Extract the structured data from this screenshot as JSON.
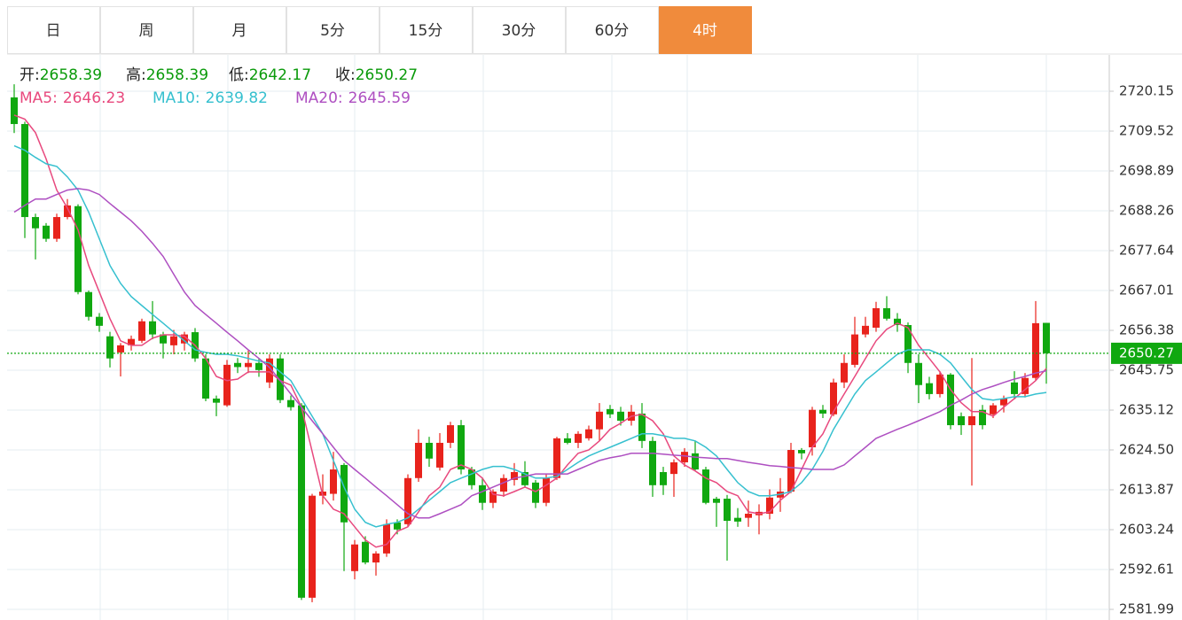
{
  "chart_data": {
    "type": "candlestick",
    "tabs": [
      "日",
      "周",
      "月",
      "5分",
      "15分",
      "30分",
      "60分",
      "4时"
    ],
    "active_tab_index": 7,
    "info": [
      {
        "label": "开:",
        "value": 2658.39
      },
      {
        "label": "高:",
        "value": 2658.39
      },
      {
        "label": "低:",
        "value": 2642.17
      },
      {
        "label": "收:",
        "value": 2650.27
      }
    ],
    "up_color": "#e8231c",
    "down_color": "#10a810",
    "last_price_color": "#10a810",
    "open": [
      2718.5,
      2711.4,
      2686.6,
      2684.3,
      2680.8,
      2686.6,
      2689.5,
      2666.6,
      2660.0,
      2654.8,
      2650.5,
      2652.4,
      2653.6,
      2658.8,
      2655.3,
      2652.4,
      2652.9,
      2655.9,
      2648.9,
      2638.2,
      2636.4,
      2647.7,
      2646.6,
      2647.7,
      2642.5,
      2648.9,
      2637.8,
      2636.4,
      2585.1,
      2612.3,
      2612.8,
      2620.5,
      2592.2,
      2600.0,
      2594.5,
      2596.9,
      2605.2,
      2604.7,
      2617.0,
      2626.4,
      2619.8,
      2626.4,
      2631.1,
      2619.3,
      2615.1,
      2610.4,
      2613.4,
      2616.5,
      2618.6,
      2615.8,
      2610.4,
      2617.0,
      2627.6,
      2626.4,
      2627.6,
      2630.0,
      2635.4,
      2634.7,
      2632.3,
      2634.2,
      2626.9,
      2618.6,
      2618.1,
      2621.2,
      2623.6,
      2619.3,
      2611.5,
      2611.5,
      2606.4,
      2606.4,
      2607.1,
      2607.5,
      2611.8,
      2613.4,
      2624.5,
      2625.2,
      2635.2,
      2634.0,
      2642.5,
      2647.2,
      2655.3,
      2657.1,
      2662.3,
      2659.5,
      2657.8,
      2647.7,
      2642.3,
      2639.4,
      2644.6,
      2633.5,
      2631.1,
      2635.2,
      2634.0,
      2636.4,
      2642.5,
      2639.4,
      2643.7,
      2658.39
    ],
    "high": [
      2722,
      2712,
      2687.5,
      2685,
      2687.5,
      2691.4,
      2690,
      2667,
      2661,
      2656,
      2653,
      2655,
      2659.5,
      2664.2,
      2656,
      2656.5,
      2656,
      2657,
      2650,
      2639,
      2648.5,
      2649,
      2651,
      2649,
      2650,
      2650,
      2639,
      2637,
      2612.8,
      2618,
      2624,
      2621,
      2600.5,
      2601.5,
      2597.5,
      2606,
      2606,
      2618,
      2630,
      2628,
      2629,
      2632,
      2632.5,
      2620,
      2617,
      2614,
      2618,
      2621,
      2621.5,
      2616.5,
      2618,
      2628,
      2629,
      2629.5,
      2631,
      2637,
      2636.5,
      2636,
      2636.5,
      2637,
      2628,
      2620,
      2622,
      2625,
      2627,
      2620,
      2612,
      2612.5,
      2609,
      2611,
      2610,
      2614,
      2617,
      2626.4,
      2625,
      2636,
      2636.5,
      2643.5,
      2650,
      2660,
      2660,
      2664,
      2665.5,
      2661,
      2658.5,
      2650,
      2644,
      2645.5,
      2645,
      2634.5,
      2649,
      2636.5,
      2637,
      2639,
      2645.5,
      2645,
      2664.2,
      2658.39
    ],
    "low": [
      2709,
      2681,
      2675.3,
      2680,
      2680,
      2686,
      2666,
      2659,
      2656,
      2646.5,
      2644.1,
      2651,
      2653,
      2654,
      2648.9,
      2650,
      2651,
      2648,
      2637.5,
      2633.5,
      2636,
      2645,
      2645,
      2644,
      2641,
      2637,
      2635,
      2584.5,
      2583.9,
      2610,
      2611,
      2592.2,
      2590,
      2594,
      2591,
      2596,
      2602,
      2604,
      2616,
      2620,
      2619,
      2625,
      2618,
      2614,
      2608.5,
      2609,
      2612,
      2615,
      2614.5,
      2609,
      2609.5,
      2616.5,
      2626,
      2625,
      2627,
      2627,
      2633,
      2631,
      2631,
      2625,
      2612,
      2612.5,
      2612,
      2620,
      2619,
      2610,
      2604,
      2595,
      2604,
      2604,
      2602,
      2606,
      2608,
      2613,
      2622,
      2623,
      2633,
      2633.5,
      2641,
      2646.5,
      2654.5,
      2656,
      2659,
      2656,
      2645,
      2637,
      2638,
      2638.5,
      2630,
      2628.5,
      2615,
      2630,
      2633,
      2634.5,
      2638,
      2638.5,
      2643,
      2642.17
    ],
    "close": [
      2711.4,
      2686.6,
      2683.6,
      2680.8,
      2686.6,
      2689.7,
      2666.6,
      2660.0,
      2657.6,
      2648.9,
      2652.4,
      2654.1,
      2658.8,
      2655.3,
      2652.9,
      2654.8,
      2655.3,
      2648.9,
      2638.2,
      2637.1,
      2647.2,
      2646.6,
      2647.7,
      2645.8,
      2648.9,
      2637.8,
      2635.9,
      2585.1,
      2612.3,
      2613.4,
      2619.3,
      2605.2,
      2599.3,
      2594.5,
      2596.9,
      2604.7,
      2603.3,
      2617.0,
      2626.4,
      2622.2,
      2626.4,
      2631.1,
      2619.3,
      2615.1,
      2610.4,
      2613.4,
      2617.0,
      2618.6,
      2615.1,
      2610.4,
      2617.0,
      2627.6,
      2626.4,
      2628.8,
      2630.0,
      2634.7,
      2634.0,
      2632.3,
      2634.7,
      2626.9,
      2615.1,
      2615.1,
      2621.2,
      2624.0,
      2619.3,
      2610.4,
      2610.4,
      2605.6,
      2605.4,
      2607.5,
      2608.0,
      2611.8,
      2613.4,
      2624.5,
      2623.6,
      2635.2,
      2634.2,
      2642.5,
      2647.7,
      2655.3,
      2657.6,
      2662.3,
      2659.5,
      2657.8,
      2647.7,
      2641.8,
      2639.4,
      2644.6,
      2631.1,
      2631.1,
      2633.5,
      2631.1,
      2636.4,
      2638.2,
      2639.4,
      2643.7,
      2658.3,
      2650.27
    ],
    "series": [
      {
        "name": "MA5:",
        "color": "#e8497e",
        "current": 2646.23,
        "values": [
          2713.8,
          2712.7,
          2709.1,
          2702.1,
          2693.8,
          2689.0,
          2683.2,
          2673.7,
          2666.6,
          2659.5,
          2653.6,
          2652.4,
          2652.4,
          2654.3,
          2655.2,
          2655.2,
          2654.8,
          2652.4,
          2648.9,
          2644.1,
          2643.0,
          2643.4,
          2645.3,
          2645.3,
          2645.3,
          2643.0,
          2641.8,
          2635.9,
          2624.1,
          2612.3,
          2608.7,
          2607.5,
          2604.0,
          2600.5,
          2598.6,
          2599.3,
          2602.8,
          2604.0,
          2608.0,
          2612.3,
          2614.6,
          2619.3,
          2620.5,
          2619.3,
          2617.0,
          2612.7,
          2612.3,
          2613.4,
          2614.6,
          2613.4,
          2615.1,
          2617.0,
          2620.5,
          2623.6,
          2624.5,
          2626.9,
          2630.0,
          2631.6,
          2633.5,
          2634.0,
          2632.3,
          2628.8,
          2622.9,
          2620.5,
          2618.9,
          2617.0,
          2615.8,
          2613.4,
          2612.3,
          2608.0,
          2607.5,
          2608.0,
          2611.1,
          2613.4,
          2619.3,
          2625.2,
          2628.8,
          2634.7,
          2639.4,
          2644.1,
          2648.9,
          2653.6,
          2656.7,
          2658.3,
          2657.1,
          2652.4,
          2648.9,
          2645.3,
          2640.6,
          2637.1,
          2634.7,
          2634.7,
          2633.5,
          2635.9,
          2638.2,
          2640.6,
          2643.0,
          2646.23
        ]
      },
      {
        "name": "MA10:",
        "color": "#36c0cf",
        "current": 2639.82,
        "values": [
          2705.6,
          2704.4,
          2702.5,
          2700.8,
          2700.1,
          2697.3,
          2693.8,
          2687.9,
          2680.8,
          2673.7,
          2668.9,
          2665.4,
          2663.0,
          2660.6,
          2658.3,
          2655.9,
          2653.6,
          2651.2,
          2650.5,
          2650.0,
          2650.0,
          2649.6,
          2648.9,
          2648.2,
          2647.7,
          2645.3,
          2643.0,
          2638.2,
          2633.5,
          2628.8,
          2621.7,
          2614.6,
          2608.7,
          2605.2,
          2604.0,
          2604.7,
          2605.2,
          2606.4,
          2608.7,
          2611.1,
          2613.4,
          2615.8,
          2617.0,
          2618.1,
          2619.3,
          2620.1,
          2620.1,
          2619.3,
          2618.1,
          2617.0,
          2617.0,
          2617.5,
          2619.3,
          2621.2,
          2622.9,
          2624.1,
          2625.2,
          2626.4,
          2627.6,
          2628.8,
          2628.8,
          2628.3,
          2627.6,
          2627.6,
          2626.9,
          2625.2,
          2622.9,
          2619.3,
          2615.8,
          2613.4,
          2612.3,
          2612.3,
          2612.7,
          2613.4,
          2615.8,
          2619.3,
          2624.1,
          2630.0,
          2634.7,
          2639.4,
          2643.0,
          2645.3,
          2647.7,
          2650.0,
          2651.2,
          2651.2,
          2651.2,
          2650.0,
          2647.7,
          2644.1,
          2640.6,
          2638.2,
          2637.8,
          2638.2,
          2638.7,
          2638.7,
          2639.4,
          2639.82
        ]
      },
      {
        "name": "MA20:",
        "color": "#ae4fc1",
        "current": 2645.59,
        "values": [
          2687.9,
          2689.7,
          2691.4,
          2691.4,
          2692.6,
          2693.8,
          2694.2,
          2693.8,
          2692.6,
          2690.2,
          2687.9,
          2685.6,
          2682.8,
          2679.6,
          2676.1,
          2671.3,
          2666.6,
          2663.0,
          2660.6,
          2658.3,
          2655.9,
          2653.6,
          2651.2,
          2648.9,
          2646.5,
          2643.0,
          2639.4,
          2635.9,
          2632.3,
          2628.8,
          2625.2,
          2621.7,
          2619.3,
          2617.0,
          2614.6,
          2612.3,
          2609.9,
          2607.5,
          2606.4,
          2606.4,
          2607.5,
          2608.7,
          2609.9,
          2612.3,
          2613.4,
          2614.6,
          2615.8,
          2617.0,
          2617.5,
          2618.1,
          2618.1,
          2618.1,
          2618.1,
          2619.3,
          2620.5,
          2621.7,
          2622.4,
          2622.9,
          2623.6,
          2623.6,
          2623.6,
          2623.4,
          2623.1,
          2622.9,
          2622.6,
          2622.4,
          2622.2,
          2622.2,
          2621.7,
          2621.2,
          2620.8,
          2620.3,
          2620.1,
          2619.8,
          2619.6,
          2619.3,
          2619.3,
          2619.3,
          2620.5,
          2622.9,
          2625.2,
          2627.6,
          2628.8,
          2630.0,
          2631.1,
          2632.3,
          2633.5,
          2634.7,
          2636.4,
          2637.8,
          2639.4,
          2640.6,
          2641.5,
          2642.5,
          2643.4,
          2644.1,
          2645.0,
          2645.59
        ]
      }
    ],
    "ylim": [
      2579.16,
      2729.83
    ],
    "yticks": [
      2720.15,
      2709.52,
      2698.89,
      2688.26,
      2677.64,
      2667.01,
      2656.38,
      2645.75,
      2635.12,
      {
        "value": 2624.5,
        "label": "2624.50"
      },
      2613.87,
      2603.24,
      2592.61,
      2581.99
    ],
    "grid": true
  }
}
